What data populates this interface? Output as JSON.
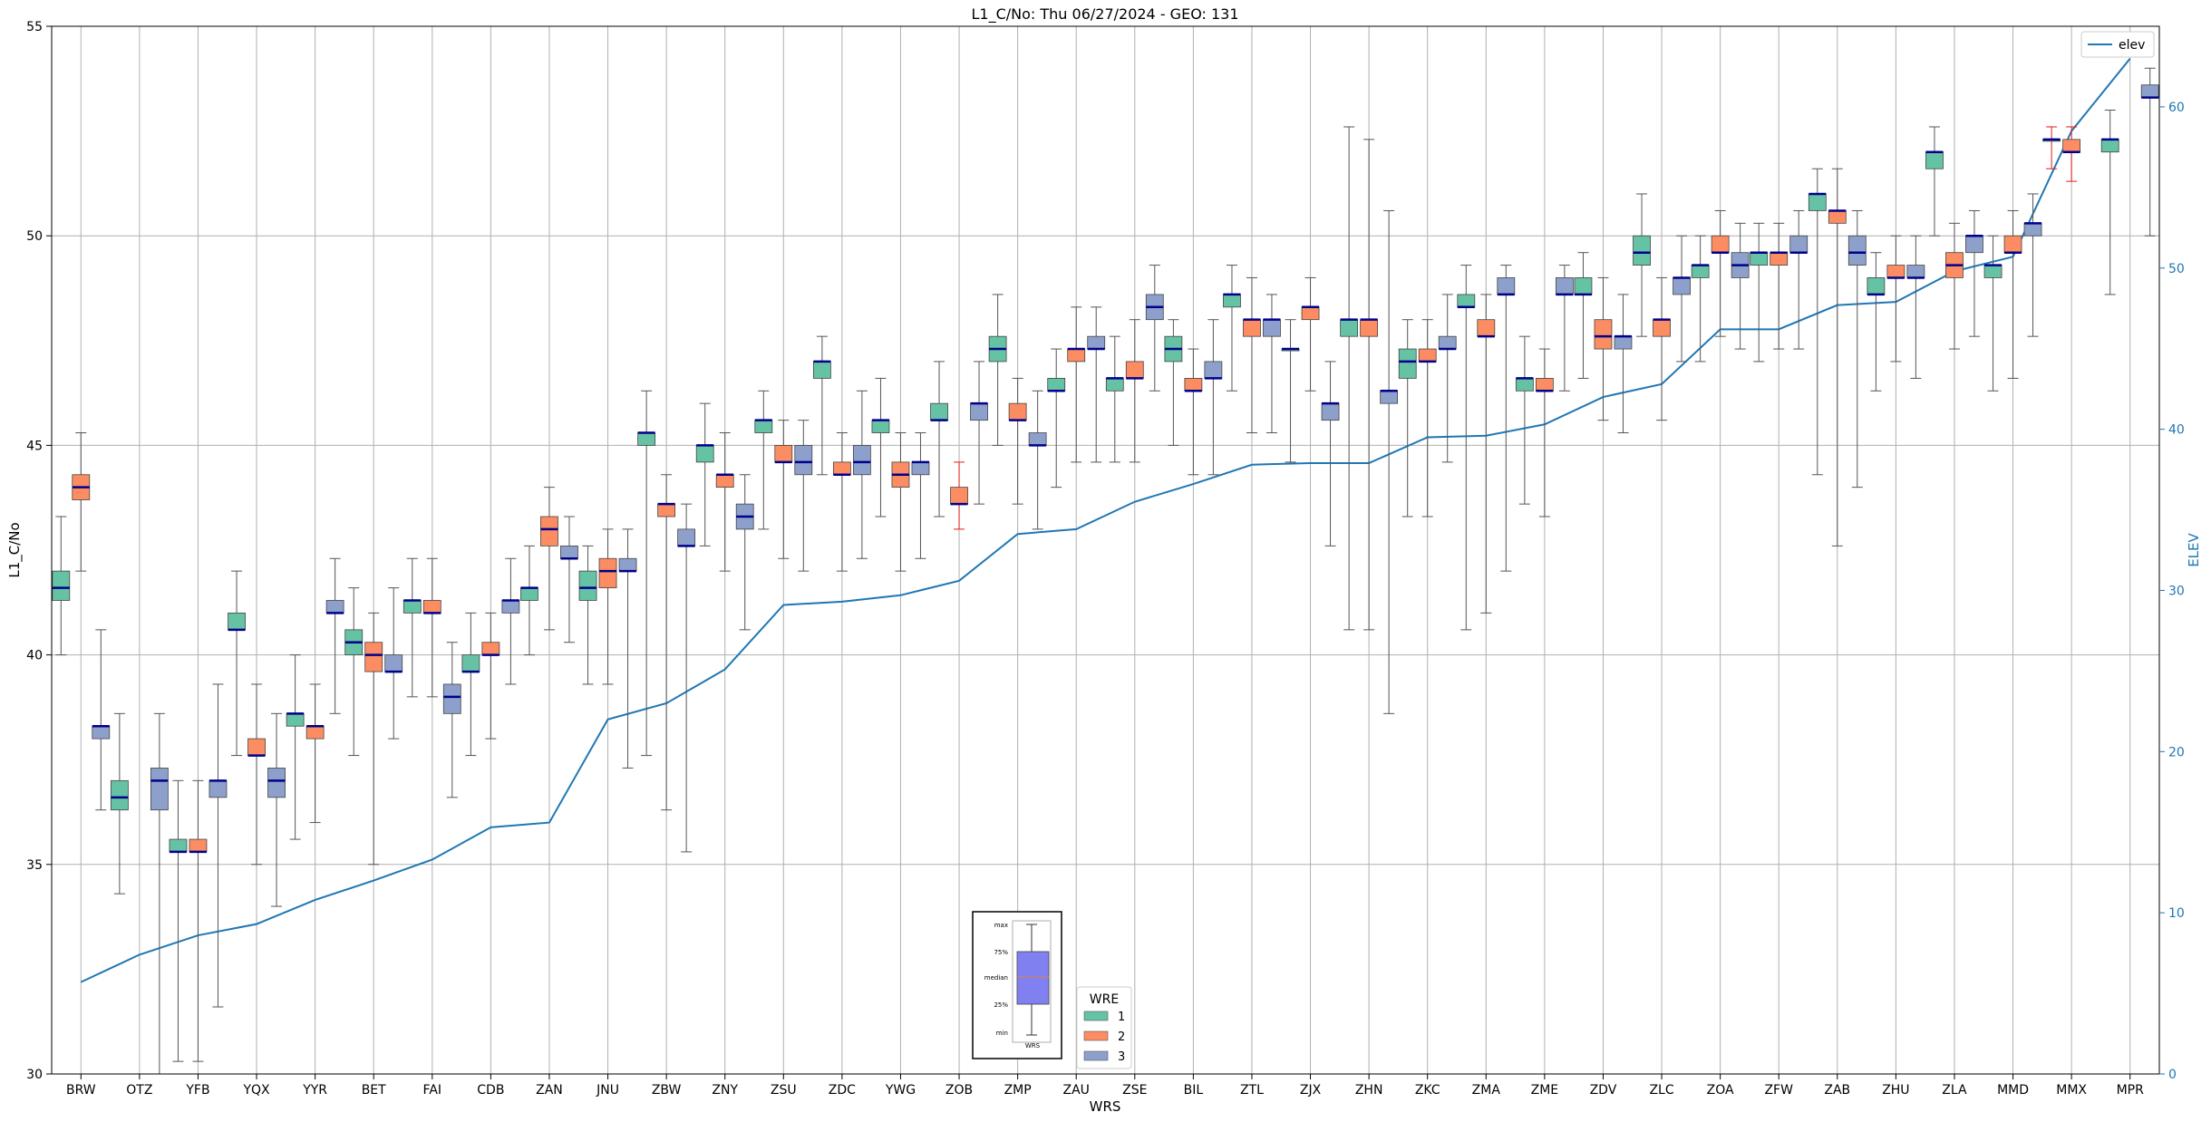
{
  "chart_data": {
    "type": "boxplot",
    "title": "L1_C/No: Thu 06/27/2024 - GEO: 131",
    "xlabel": "WRS",
    "ylabel": "L1_C/No",
    "ylabel_right": "ELEV",
    "ylim": [
      30,
      55
    ],
    "ylim_right": [
      0,
      65
    ],
    "yticks": [
      "30",
      "35",
      "40",
      "45",
      "50",
      "55"
    ],
    "yticks_right": [
      "0",
      "10",
      "20",
      "30",
      "40",
      "50",
      "60"
    ],
    "grid": true,
    "colors": {
      "1": "#66c2a5",
      "2": "#fc8d62",
      "3": "#8da0cb",
      "median": "#00008b",
      "elev": "#1f77b4",
      "outlier_whisker": "#e41a1c"
    },
    "categories": [
      "BRW",
      "OTZ",
      "YFB",
      "YQX",
      "YYR",
      "BET",
      "FAI",
      "CDB",
      "ZAN",
      "JNU",
      "ZBW",
      "ZNY",
      "ZSU",
      "ZDC",
      "YWG",
      "ZOB",
      "ZMP",
      "ZAU",
      "ZSE",
      "BIL",
      "ZTL",
      "ZJX",
      "ZHN",
      "ZKC",
      "ZMA",
      "ZME",
      "ZDV",
      "ZLC",
      "ZOA",
      "ZFW",
      "ZAB",
      "ZHU",
      "ZLA",
      "MMD",
      "MMX",
      "MPR"
    ],
    "elev_legend": "elev",
    "elev": [
      5.7,
      7.4,
      8.6,
      9.3,
      10.8,
      12.0,
      13.3,
      15.3,
      15.6,
      22.0,
      23.0,
      25.1,
      29.1,
      29.3,
      29.7,
      30.6,
      33.5,
      33.8,
      35.5,
      36.6,
      37.8,
      37.9,
      37.9,
      39.5,
      39.6,
      40.3,
      42.0,
      42.8,
      46.2,
      46.2,
      47.7,
      47.9,
      49.8,
      50.7,
      58.5,
      63.0
    ],
    "boxes": [
      {
        "x": "BRW",
        "wre": "1",
        "min": 40,
        "q1": 41.3,
        "median": 41.6,
        "q3": 42.0,
        "max": 43.3
      },
      {
        "x": "BRW",
        "wre": "2",
        "min": 42,
        "q1": 43.7,
        "median": 44.0,
        "q3": 44.3,
        "max": 45.3
      },
      {
        "x": "BRW",
        "wre": "3",
        "min": 36.3,
        "q1": 38.0,
        "median": 38.3,
        "q3": 38.3,
        "max": 40.6
      },
      {
        "x": "OTZ",
        "wre": "1",
        "min": 34.3,
        "q1": 36.3,
        "median": 36.6,
        "q3": 37.0,
        "max": 38.6
      },
      {
        "x": "OTZ",
        "wre": "3",
        "min": 30,
        "q1": 36.3,
        "median": 37.0,
        "q3": 37.3,
        "max": 38.6
      },
      {
        "x": "YFB",
        "wre": "1",
        "min": 30.3,
        "q1": 35.3,
        "median": 35.3,
        "q3": 35.6,
        "max": 37.0
      },
      {
        "x": "YFB",
        "wre": "2",
        "min": 30.3,
        "q1": 35.3,
        "median": 35.3,
        "q3": 35.6,
        "max": 37.0
      },
      {
        "x": "YFB",
        "wre": "3",
        "min": 31.6,
        "q1": 36.6,
        "median": 37.0,
        "q3": 37.0,
        "max": 39.3
      },
      {
        "x": "YQX",
        "wre": "1",
        "min": 37.6,
        "q1": 40.6,
        "median": 40.6,
        "q3": 41.0,
        "max": 42.0
      },
      {
        "x": "YQX",
        "wre": "2",
        "min": 35.0,
        "q1": 37.6,
        "median": 37.6,
        "q3": 38.0,
        "max": 39.3
      },
      {
        "x": "YQX",
        "wre": "3",
        "min": 34.0,
        "q1": 36.6,
        "median": 37.0,
        "q3": 37.3,
        "max": 38.6
      },
      {
        "x": "YYR",
        "wre": "1",
        "min": 35.6,
        "q1": 38.3,
        "median": 38.6,
        "q3": 38.6,
        "max": 40.0
      },
      {
        "x": "YYR",
        "wre": "2",
        "min": 36.0,
        "q1": 38.0,
        "median": 38.3,
        "q3": 38.3,
        "max": 39.3
      },
      {
        "x": "YYR",
        "wre": "3",
        "min": 38.6,
        "q1": 41.0,
        "median": 41.0,
        "q3": 41.3,
        "max": 42.3
      },
      {
        "x": "BET",
        "wre": "1",
        "min": 37.6,
        "q1": 40.0,
        "median": 40.3,
        "q3": 40.6,
        "max": 41.6
      },
      {
        "x": "BET",
        "wre": "2",
        "min": 35.0,
        "q1": 39.6,
        "median": 40.0,
        "q3": 40.3,
        "max": 41.0
      },
      {
        "x": "BET",
        "wre": "3",
        "min": 38.0,
        "q1": 39.6,
        "median": 39.6,
        "q3": 40.0,
        "max": 41.6
      },
      {
        "x": "FAI",
        "wre": "1",
        "min": 39.0,
        "q1": 41.0,
        "median": 41.3,
        "q3": 41.3,
        "max": 42.3
      },
      {
        "x": "FAI",
        "wre": "2",
        "min": 39.0,
        "q1": 41.0,
        "median": 41.0,
        "q3": 41.3,
        "max": 42.3
      },
      {
        "x": "FAI",
        "wre": "3",
        "min": 36.6,
        "q1": 38.6,
        "median": 39.0,
        "q3": 39.3,
        "max": 40.3
      },
      {
        "x": "CDB",
        "wre": "1",
        "min": 37.6,
        "q1": 39.6,
        "median": 39.6,
        "q3": 40.0,
        "max": 41.0
      },
      {
        "x": "CDB",
        "wre": "2",
        "min": 38.0,
        "q1": 40.0,
        "median": 40.0,
        "q3": 40.3,
        "max": 41.0
      },
      {
        "x": "CDB",
        "wre": "3",
        "min": 39.3,
        "q1": 41.0,
        "median": 41.3,
        "q3": 41.3,
        "max": 42.3
      },
      {
        "x": "ZAN",
        "wre": "1",
        "min": 40.0,
        "q1": 41.3,
        "median": 41.6,
        "q3": 41.6,
        "max": 42.6
      },
      {
        "x": "ZAN",
        "wre": "2",
        "min": 40.6,
        "q1": 42.6,
        "median": 43.0,
        "q3": 43.3,
        "max": 44.0
      },
      {
        "x": "ZAN",
        "wre": "3",
        "min": 40.3,
        "q1": 42.3,
        "median": 42.3,
        "q3": 42.6,
        "max": 43.3
      },
      {
        "x": "JNU",
        "wre": "1",
        "min": 39.3,
        "q1": 41.3,
        "median": 41.6,
        "q3": 42.0,
        "max": 42.6
      },
      {
        "x": "JNU",
        "wre": "2",
        "min": 39.3,
        "q1": 41.6,
        "median": 42.0,
        "q3": 42.3,
        "max": 43.0
      },
      {
        "x": "JNU",
        "wre": "3",
        "min": 37.3,
        "q1": 42.0,
        "median": 42.0,
        "q3": 42.3,
        "max": 43.0
      },
      {
        "x": "ZBW",
        "wre": "1",
        "min": 37.6,
        "q1": 45.0,
        "median": 45.3,
        "q3": 45.3,
        "max": 46.3
      },
      {
        "x": "ZBW",
        "wre": "2",
        "min": 36.3,
        "q1": 43.3,
        "median": 43.6,
        "q3": 43.6,
        "max": 44.3
      },
      {
        "x": "ZBW",
        "wre": "3",
        "min": 35.3,
        "q1": 42.6,
        "median": 42.6,
        "q3": 43.0,
        "max": 43.6
      },
      {
        "x": "ZNY",
        "wre": "1",
        "min": 42.6,
        "q1": 44.6,
        "median": 45.0,
        "q3": 45.0,
        "max": 46.0
      },
      {
        "x": "ZNY",
        "wre": "2",
        "min": 42.0,
        "q1": 44.0,
        "median": 44.3,
        "q3": 44.3,
        "max": 45.3
      },
      {
        "x": "ZNY",
        "wre": "3",
        "min": 40.6,
        "q1": 43.0,
        "median": 43.3,
        "q3": 43.6,
        "max": 44.3
      },
      {
        "x": "ZSU",
        "wre": "1",
        "min": 43.0,
        "q1": 45.3,
        "median": 45.6,
        "q3": 45.6,
        "max": 46.3
      },
      {
        "x": "ZSU",
        "wre": "2",
        "min": 42.3,
        "q1": 44.6,
        "median": 44.6,
        "q3": 45.0,
        "max": 45.6
      },
      {
        "x": "ZSU",
        "wre": "3",
        "min": 42.0,
        "q1": 44.3,
        "median": 44.6,
        "q3": 45.0,
        "max": 45.6
      },
      {
        "x": "ZDC",
        "wre": "1",
        "min": 44.3,
        "q1": 46.6,
        "median": 47.0,
        "q3": 47.0,
        "max": 47.6
      },
      {
        "x": "ZDC",
        "wre": "2",
        "min": 42.0,
        "q1": 44.3,
        "median": 44.3,
        "q3": 44.6,
        "max": 45.3
      },
      {
        "x": "ZDC",
        "wre": "3",
        "min": 42.3,
        "q1": 44.3,
        "median": 44.6,
        "q3": 45.0,
        "max": 46.3
      },
      {
        "x": "YWG",
        "wre": "1",
        "min": 43.3,
        "q1": 45.3,
        "median": 45.6,
        "q3": 45.6,
        "max": 46.6
      },
      {
        "x": "YWG",
        "wre": "2",
        "min": 42.0,
        "q1": 44.0,
        "median": 44.3,
        "q3": 44.6,
        "max": 45.3
      },
      {
        "x": "YWG",
        "wre": "3",
        "min": 42.3,
        "q1": 44.3,
        "median": 44.6,
        "q3": 44.6,
        "max": 45.3
      },
      {
        "x": "ZOB",
        "wre": "1",
        "min": 43.3,
        "q1": 45.6,
        "median": 45.6,
        "q3": 46.0,
        "max": 47.0
      },
      {
        "x": "ZOB",
        "wre": "2",
        "min": 43.0,
        "q1": 43.6,
        "median": 43.6,
        "q3": 44.0,
        "max": 44.6,
        "red": true
      },
      {
        "x": "ZOB",
        "wre": "3",
        "min": 43.6,
        "q1": 45.6,
        "median": 46.0,
        "q3": 46.0,
        "max": 47.0
      },
      {
        "x": "ZMP",
        "wre": "1",
        "min": 45.0,
        "q1": 47.0,
        "median": 47.3,
        "q3": 47.6,
        "max": 48.6
      },
      {
        "x": "ZMP",
        "wre": "2",
        "min": 43.6,
        "q1": 45.6,
        "median": 45.6,
        "q3": 46.0,
        "max": 46.6
      },
      {
        "x": "ZMP",
        "wre": "3",
        "min": 43.0,
        "q1": 45.0,
        "median": 45.0,
        "q3": 45.3,
        "max": 46.3
      },
      {
        "x": "ZAU",
        "wre": "1",
        "min": 44.0,
        "q1": 46.3,
        "median": 46.3,
        "q3": 46.6,
        "max": 47.3
      },
      {
        "x": "ZAU",
        "wre": "2",
        "min": 44.6,
        "q1": 47.0,
        "median": 47.3,
        "q3": 47.3,
        "max": 48.3
      },
      {
        "x": "ZAU",
        "wre": "3",
        "min": 44.6,
        "q1": 47.3,
        "median": 47.3,
        "q3": 47.6,
        "max": 48.3
      },
      {
        "x": "ZSE",
        "wre": "1",
        "min": 44.6,
        "q1": 46.3,
        "median": 46.6,
        "q3": 46.6,
        "max": 47.6
      },
      {
        "x": "ZSE",
        "wre": "2",
        "min": 44.6,
        "q1": 46.6,
        "median": 46.6,
        "q3": 47.0,
        "max": 48.0
      },
      {
        "x": "ZSE",
        "wre": "3",
        "min": 46.3,
        "q1": 48.0,
        "median": 48.3,
        "q3": 48.6,
        "max": 49.3
      },
      {
        "x": "BIL",
        "wre": "1",
        "min": 45.0,
        "q1": 47.0,
        "median": 47.3,
        "q3": 47.6,
        "max": 48.0
      },
      {
        "x": "BIL",
        "wre": "2",
        "min": 44.3,
        "q1": 46.3,
        "median": 46.3,
        "q3": 46.6,
        "max": 47.3
      },
      {
        "x": "BIL",
        "wre": "3",
        "min": 44.3,
        "q1": 46.6,
        "median": 46.6,
        "q3": 47.0,
        "max": 48.0
      },
      {
        "x": "ZTL",
        "wre": "1",
        "min": 46.3,
        "q1": 48.3,
        "median": 48.6,
        "q3": 48.6,
        "max": 49.3
      },
      {
        "x": "ZTL",
        "wre": "2",
        "min": 45.3,
        "q1": 47.6,
        "median": 48.0,
        "q3": 48.0,
        "max": 49.0
      },
      {
        "x": "ZTL",
        "wre": "3",
        "min": 45.3,
        "q1": 47.6,
        "median": 48.0,
        "q3": 48.0,
        "max": 48.6
      },
      {
        "x": "ZJX",
        "wre": "1",
        "min": 44.6,
        "q1": 47.3,
        "median": 47.3,
        "q3": 47.3,
        "max": 48.0
      },
      {
        "x": "ZJX",
        "wre": "2",
        "min": 46.3,
        "q1": 48.0,
        "median": 48.3,
        "q3": 48.3,
        "max": 49.0
      },
      {
        "x": "ZJX",
        "wre": "3",
        "min": 42.6,
        "q1": 45.6,
        "median": 46.0,
        "q3": 46.0,
        "max": 47.0
      },
      {
        "x": "ZHN",
        "wre": "1",
        "min": 40.6,
        "q1": 47.6,
        "median": 48.0,
        "q3": 48.0,
        "max": 52.6
      },
      {
        "x": "ZHN",
        "wre": "2",
        "min": 40.6,
        "q1": 47.6,
        "median": 48.0,
        "q3": 48.0,
        "max": 52.3
      },
      {
        "x": "ZHN",
        "wre": "3",
        "min": 38.6,
        "q1": 46.0,
        "median": 46.3,
        "q3": 46.3,
        "max": 50.6
      },
      {
        "x": "ZKC",
        "wre": "1",
        "min": 43.3,
        "q1": 46.6,
        "median": 47.0,
        "q3": 47.3,
        "max": 48.0
      },
      {
        "x": "ZKC",
        "wre": "2",
        "min": 43.3,
        "q1": 47.0,
        "median": 47.0,
        "q3": 47.3,
        "max": 48.0
      },
      {
        "x": "ZKC",
        "wre": "3",
        "min": 44.6,
        "q1": 47.3,
        "median": 47.3,
        "q3": 47.6,
        "max": 48.6
      },
      {
        "x": "ZMA",
        "wre": "1",
        "min": 40.6,
        "q1": 48.3,
        "median": 48.3,
        "q3": 48.6,
        "max": 49.3
      },
      {
        "x": "ZMA",
        "wre": "2",
        "min": 41.0,
        "q1": 47.6,
        "median": 47.6,
        "q3": 48.0,
        "max": 48.6
      },
      {
        "x": "ZMA",
        "wre": "3",
        "min": 42.0,
        "q1": 48.6,
        "median": 48.6,
        "q3": 49.0,
        "max": 49.3
      },
      {
        "x": "ZME",
        "wre": "1",
        "min": 43.6,
        "q1": 46.3,
        "median": 46.6,
        "q3": 46.6,
        "max": 47.6
      },
      {
        "x": "ZME",
        "wre": "2",
        "min": 43.3,
        "q1": 46.3,
        "median": 46.3,
        "q3": 46.6,
        "max": 47.3
      },
      {
        "x": "ZME",
        "wre": "3",
        "min": 46.3,
        "q1": 48.6,
        "median": 48.6,
        "q3": 49.0,
        "max": 49.3
      },
      {
        "x": "ZDV",
        "wre": "1",
        "min": 46.6,
        "q1": 48.6,
        "median": 48.6,
        "q3": 49.0,
        "max": 49.6
      },
      {
        "x": "ZDV",
        "wre": "2",
        "min": 45.6,
        "q1": 47.3,
        "median": 47.6,
        "q3": 48.0,
        "max": 49.0
      },
      {
        "x": "ZDV",
        "wre": "3",
        "min": 45.3,
        "q1": 47.3,
        "median": 47.6,
        "q3": 47.6,
        "max": 48.6
      },
      {
        "x": "ZLC",
        "wre": "1",
        "min": 47.6,
        "q1": 49.3,
        "median": 49.6,
        "q3": 50.0,
        "max": 51.0
      },
      {
        "x": "ZLC",
        "wre": "2",
        "min": 45.6,
        "q1": 47.6,
        "median": 48.0,
        "q3": 48.0,
        "max": 49.0
      },
      {
        "x": "ZLC",
        "wre": "3",
        "min": 47.0,
        "q1": 48.6,
        "median": 49.0,
        "q3": 49.0,
        "max": 50.0
      },
      {
        "x": "ZOA",
        "wre": "1",
        "min": 47.0,
        "q1": 49.0,
        "median": 49.3,
        "q3": 49.3,
        "max": 50.0
      },
      {
        "x": "ZOA",
        "wre": "2",
        "min": 47.6,
        "q1": 49.6,
        "median": 49.6,
        "q3": 50.0,
        "max": 50.6
      },
      {
        "x": "ZOA",
        "wre": "3",
        "min": 47.3,
        "q1": 49.0,
        "median": 49.3,
        "q3": 49.6,
        "max": 50.3
      },
      {
        "x": "ZFW",
        "wre": "1",
        "min": 47.0,
        "q1": 49.3,
        "median": 49.6,
        "q3": 49.6,
        "max": 50.3
      },
      {
        "x": "ZFW",
        "wre": "2",
        "min": 47.3,
        "q1": 49.3,
        "median": 49.6,
        "q3": 49.6,
        "max": 50.3
      },
      {
        "x": "ZFW",
        "wre": "3",
        "min": 47.3,
        "q1": 49.6,
        "median": 49.6,
        "q3": 50.0,
        "max": 50.6
      },
      {
        "x": "ZAB",
        "wre": "1",
        "min": 44.3,
        "q1": 50.6,
        "median": 51.0,
        "q3": 51.0,
        "max": 51.6
      },
      {
        "x": "ZAB",
        "wre": "2",
        "min": 42.6,
        "q1": 50.3,
        "median": 50.6,
        "q3": 50.6,
        "max": 51.6
      },
      {
        "x": "ZAB",
        "wre": "3",
        "min": 44.0,
        "q1": 49.3,
        "median": 49.6,
        "q3": 50.0,
        "max": 50.6
      },
      {
        "x": "ZHU",
        "wre": "1",
        "min": 46.3,
        "q1": 48.6,
        "median": 48.6,
        "q3": 49.0,
        "max": 49.6
      },
      {
        "x": "ZHU",
        "wre": "2",
        "min": 47.0,
        "q1": 49.0,
        "median": 49.0,
        "q3": 49.3,
        "max": 50.0
      },
      {
        "x": "ZHU",
        "wre": "3",
        "min": 46.6,
        "q1": 49.0,
        "median": 49.0,
        "q3": 49.3,
        "max": 50.0
      },
      {
        "x": "ZLA",
        "wre": "1",
        "min": 50.0,
        "q1": 51.6,
        "median": 52.0,
        "q3": 52.0,
        "max": 52.6
      },
      {
        "x": "ZLA",
        "wre": "2",
        "min": 47.3,
        "q1": 49.0,
        "median": 49.3,
        "q3": 49.6,
        "max": 50.3
      },
      {
        "x": "ZLA",
        "wre": "3",
        "min": 47.6,
        "q1": 49.6,
        "median": 50.0,
        "q3": 50.0,
        "max": 50.6
      },
      {
        "x": "MMD",
        "wre": "1",
        "min": 46.3,
        "q1": 49.0,
        "median": 49.3,
        "q3": 49.3,
        "max": 50.0
      },
      {
        "x": "MMD",
        "wre": "2",
        "min": 46.6,
        "q1": 49.6,
        "median": 49.6,
        "q3": 50.0,
        "max": 50.6
      },
      {
        "x": "MMD",
        "wre": "3",
        "min": 47.6,
        "q1": 50.0,
        "median": 50.3,
        "q3": 50.3,
        "max": 51.0
      },
      {
        "x": "MMX",
        "wre": "1",
        "min": 51.6,
        "q1": 52.3,
        "median": 52.3,
        "q3": 52.3,
        "max": 52.6,
        "red": true
      },
      {
        "x": "MMX",
        "wre": "2",
        "min": 51.3,
        "q1": 52.0,
        "median": 52.0,
        "q3": 52.3,
        "max": 52.6,
        "red": true
      },
      {
        "x": "MPR",
        "wre": "1",
        "min": 48.6,
        "q1": 52.0,
        "median": 52.3,
        "q3": 52.3,
        "max": 53.0
      },
      {
        "x": "MPR",
        "wre": "3",
        "min": 50.0,
        "q1": 53.3,
        "median": 53.3,
        "q3": 53.6,
        "max": 54.0
      }
    ],
    "legend_wre": {
      "title": "WRE",
      "items": [
        "1",
        "2",
        "3"
      ]
    },
    "key_box": {
      "labels": [
        "max",
        "75%",
        "median",
        "25%",
        "min"
      ],
      "caption": "WRS"
    }
  }
}
